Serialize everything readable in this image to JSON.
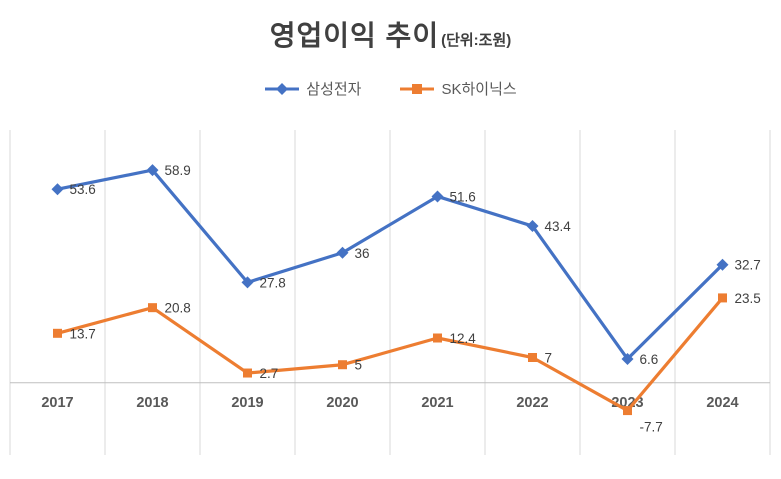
{
  "chart_data": {
    "type": "line",
    "title": "영업이익 추이",
    "subtitle": "(단위:조원)",
    "categories": [
      "2017",
      "2018",
      "2019",
      "2020",
      "2021",
      "2022",
      "2023",
      "2024"
    ],
    "series": [
      {
        "name": "삼성전자",
        "color": "#4472C4",
        "marker": "diamond",
        "values": [
          53.6,
          58.9,
          27.8,
          36,
          51.6,
          43.4,
          6.6,
          32.7
        ],
        "labels": [
          "53.6",
          "58.9",
          "27.8",
          "36",
          "51.6",
          "43.4",
          "6.6",
          "32.7"
        ],
        "label_dy": [
          0,
          0,
          0,
          0,
          0,
          0,
          0,
          0
        ]
      },
      {
        "name": "SK하이닉스",
        "color": "#ED7D31",
        "marker": "square",
        "values": [
          13.7,
          20.8,
          2.7,
          5,
          12.4,
          7,
          -7.7,
          23.5
        ],
        "labels": [
          "13.7",
          "20.8",
          "2.7",
          "5",
          "12.4",
          "7",
          "-7.7",
          "23.5"
        ],
        "label_dy": [
          0,
          0,
          0,
          0,
          0,
          0,
          16,
          0
        ]
      }
    ],
    "ylim": [
      -20,
      70
    ],
    "grid": "vertical",
    "legend_position": "top",
    "data_label_position": "right",
    "label_color": "#404040",
    "tick_color": "#595959",
    "gridline_color": "#D9D9D9",
    "axis_color": "#BFBFBF"
  }
}
